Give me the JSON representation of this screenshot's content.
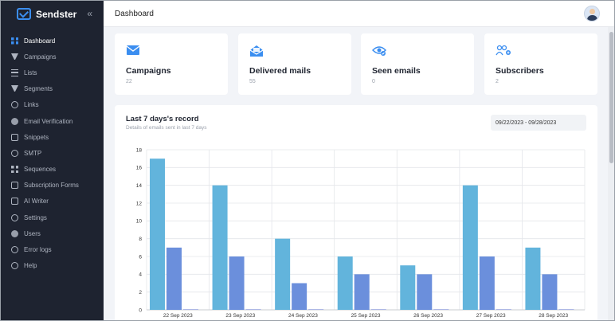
{
  "app": {
    "name": "Sendster",
    "collapse_icon": "double-chevron-left-icon"
  },
  "sidebar": {
    "items": [
      {
        "label": "Dashboard",
        "icon": "grid-icon",
        "active": true
      },
      {
        "label": "Campaigns",
        "icon": "megaphone-icon"
      },
      {
        "label": "Lists",
        "icon": "list-icon"
      },
      {
        "label": "Segments",
        "icon": "filter-icon"
      },
      {
        "label": "Links",
        "icon": "link-icon"
      },
      {
        "label": "Email Verification",
        "icon": "user-check-icon"
      },
      {
        "label": "Snippets",
        "icon": "code-icon"
      },
      {
        "label": "SMTP",
        "icon": "at-icon"
      },
      {
        "label": "Sequences",
        "icon": "sequence-icon"
      },
      {
        "label": "Subscription Forms",
        "icon": "form-icon"
      },
      {
        "label": "AI Writer",
        "icon": "robot-icon"
      },
      {
        "label": "Settings",
        "icon": "gear-icon"
      },
      {
        "label": "Users",
        "icon": "users-icon"
      },
      {
        "label": "Error logs",
        "icon": "error-icon"
      },
      {
        "label": "Help",
        "icon": "help-icon"
      }
    ]
  },
  "header": {
    "title": "Dashboard",
    "avatar_icon": "user-avatar-icon"
  },
  "stats": [
    {
      "label": "Campaigns",
      "value": "22",
      "icon": "envelope-icon"
    },
    {
      "label": "Delivered mails",
      "value": "55",
      "icon": "open-envelope-icon"
    },
    {
      "label": "Seen emails",
      "value": "0",
      "icon": "eye-check-icon"
    },
    {
      "label": "Subscribers",
      "value": "2",
      "icon": "users-add-icon"
    }
  ],
  "panel": {
    "title": "Last 7 days's record",
    "subtitle": "Details of emails sent in last 7 days",
    "date_range": "09/22/2023 - 09/28/2023"
  },
  "colors": {
    "accent": "#3b8ef0",
    "series_a": "#62b4dc",
    "series_b": "#6b8fdc",
    "series_c": "#9aa7e0"
  },
  "chart_data": {
    "type": "bar",
    "categories": [
      "22 Sep 2023",
      "23 Sep 2023",
      "24 Sep 2023",
      "25 Sep 2023",
      "26 Sep 2023",
      "27 Sep 2023",
      "28 Sep 2023"
    ],
    "series": [
      {
        "values": [
          17,
          14,
          8,
          6,
          5,
          14,
          7
        ]
      },
      {
        "values": [
          7,
          6,
          3,
          4,
          4,
          6,
          4
        ]
      },
      {
        "values": [
          0,
          0,
          0,
          0,
          0,
          0,
          0
        ]
      }
    ],
    "ylim": [
      0,
      18
    ],
    "yticks": [
      0,
      2,
      4,
      6,
      8,
      10,
      12,
      14,
      16,
      18
    ],
    "grid": true,
    "legend": "none"
  }
}
